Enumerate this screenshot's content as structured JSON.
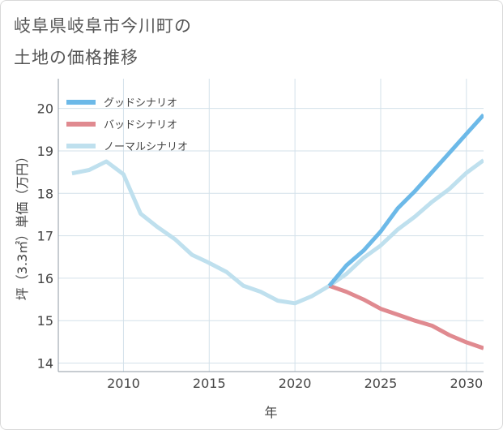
{
  "title_lines": [
    "岐阜県岐阜市今川町の",
    "土地の価格推移"
  ],
  "chart_data": {
    "type": "line",
    "title": "岐阜県岐阜市今川町の土地の価格推移",
    "xlabel": "年",
    "ylabel": "坪（3.3㎡）単価（万円）",
    "xlim": [
      2006.2,
      2031
    ],
    "ylim": [
      13.8,
      20.7
    ],
    "xticks": [
      2010,
      2015,
      2020,
      2025,
      2030
    ],
    "yticks": [
      14,
      15,
      16,
      17,
      18,
      19,
      20
    ],
    "grid": true,
    "legend_position": "top-left",
    "series": [
      {
        "name": "グッドシナリオ",
        "color": "#6cb9e8",
        "x": [
          2022,
          2023,
          2024,
          2025,
          2026,
          2027,
          2028,
          2029,
          2030,
          2031
        ],
        "y": [
          15.82,
          16.3,
          16.65,
          17.1,
          17.65,
          18.05,
          18.5,
          18.95,
          19.4,
          19.85
        ]
      },
      {
        "name": "バッドシナリオ",
        "color": "#e08a90",
        "x": [
          2022,
          2023,
          2024,
          2025,
          2026,
          2027,
          2028,
          2029,
          2030,
          2031
        ],
        "y": [
          15.82,
          15.68,
          15.5,
          15.28,
          15.14,
          15.0,
          14.88,
          14.66,
          14.49,
          14.35
        ]
      },
      {
        "name": "ノーマルシナリオ",
        "color": "#bfe0ee",
        "x": [
          2007,
          2008,
          2009,
          2010,
          2011,
          2012,
          2013,
          2014,
          2015,
          2016,
          2017,
          2018,
          2019,
          2020,
          2021,
          2022,
          2023,
          2024,
          2025,
          2026,
          2027,
          2028,
          2029,
          2030,
          2031
        ],
        "y": [
          18.47,
          18.55,
          18.75,
          18.45,
          17.52,
          17.2,
          16.92,
          16.55,
          16.36,
          16.15,
          15.82,
          15.68,
          15.47,
          15.41,
          15.58,
          15.82,
          16.1,
          16.48,
          16.77,
          17.15,
          17.45,
          17.8,
          18.1,
          18.48,
          18.78
        ]
      }
    ]
  }
}
